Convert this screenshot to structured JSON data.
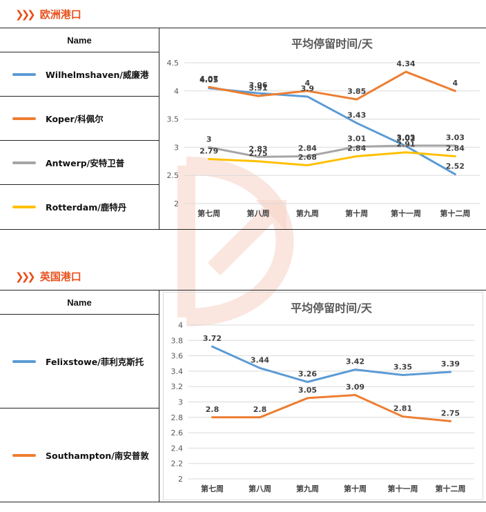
{
  "sections": [
    {
      "title": "欧洲港口",
      "legend_header": "Name",
      "series_labels": [
        "Wilhelmshaven/威廉港",
        "Koper/科佩尔",
        "Antwerp/安特卫普",
        "Rotterdam/鹿特丹"
      ]
    },
    {
      "title": "英国港口",
      "legend_header": "Name",
      "series_labels": [
        "Felixstowe/菲利克斯托",
        "Southampton/南安普敦"
      ]
    }
  ],
  "chart_data": [
    {
      "type": "line",
      "title": "平均停留时间/天",
      "categories": [
        "第七周",
        "第八周",
        "第九周",
        "第十周",
        "第十一周",
        "第十二周"
      ],
      "ylim": [
        2,
        4.5
      ],
      "yticks": [
        "2",
        "2.5",
        "3",
        "3.5",
        "4",
        "4.5"
      ],
      "grid": true,
      "series": [
        {
          "name": "Wilhelmshaven/威廉港",
          "color": "#5b9bd5",
          "values": [
            4.05,
            3.96,
            3.9,
            3.43,
            3.02,
            2.52
          ]
        },
        {
          "name": "Koper/科佩尔",
          "color": "#ed7d31",
          "values": [
            4.07,
            3.91,
            4,
            3.85,
            4.34,
            4
          ]
        },
        {
          "name": "Antwerp/安特卫普",
          "color": "#a5a5a5",
          "values": [
            3,
            2.83,
            2.84,
            3.01,
            3.03,
            3.03
          ]
        },
        {
          "name": "Rotterdam/鹿特丹",
          "color": "#ffc000",
          "values": [
            2.79,
            2.75,
            2.68,
            2.84,
            2.91,
            2.84
          ]
        }
      ],
      "data_labels": [
        [
          "4.05",
          "3.96",
          "3.9",
          "3.43",
          "3.02",
          "2.52"
        ],
        [
          "4.07",
          "3.91",
          "4",
          "3.85",
          "4.34",
          "4"
        ],
        [
          "3",
          "2.83",
          "2.84",
          "3.01",
          "3.03",
          "3.03"
        ],
        [
          "2.79",
          "2.75",
          "2.68",
          "2.84",
          "2.91",
          "2.84"
        ]
      ]
    },
    {
      "type": "line",
      "title": "平均停留时间/天",
      "categories": [
        "第七周",
        "第八周",
        "第九周",
        "第十周",
        "第十一周",
        "第十二周"
      ],
      "ylim": [
        2,
        4
      ],
      "yticks": [
        "2",
        "2.2",
        "2.4",
        "2.6",
        "2.8",
        "3",
        "3.2",
        "3.4",
        "3.6",
        "3.8",
        "4"
      ],
      "grid": true,
      "series": [
        {
          "name": "Felixstowe/菲利克斯托",
          "color": "#5b9bd5",
          "values": [
            3.72,
            3.44,
            3.26,
            3.42,
            3.35,
            3.39
          ]
        },
        {
          "name": "Southampton/南安普敦",
          "color": "#ed7d31",
          "values": [
            2.8,
            2.8,
            3.05,
            3.09,
            2.81,
            2.75
          ]
        }
      ],
      "data_labels": [
        [
          "3.72",
          "3.44",
          "3.26",
          "3.42",
          "3.35",
          "3.39"
        ],
        [
          "2.8",
          "2.8",
          "3.05",
          "3.09",
          "2.81",
          "2.75"
        ]
      ]
    }
  ]
}
